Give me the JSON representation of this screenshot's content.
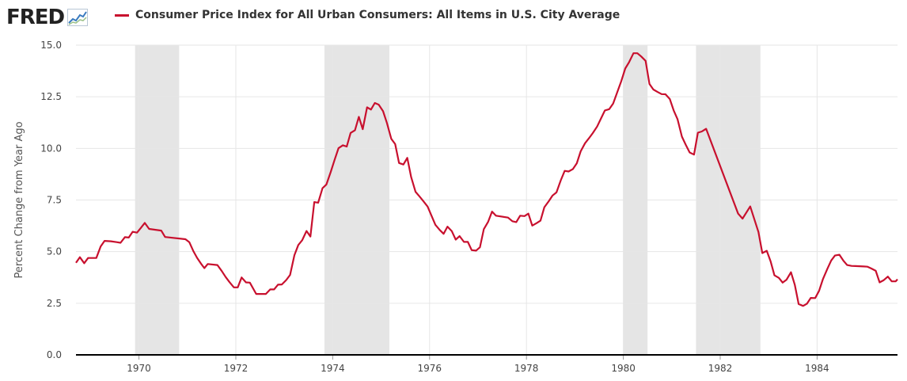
{
  "header": {
    "logo_text": "FRED",
    "logo_icon": "trend-chart-icon",
    "series_title": "Consumer Price Index for All Urban Consumers: All Items in U.S. City Average"
  },
  "colors": {
    "series_line": "#c8102e",
    "recession_band": "#e5e5e5",
    "grid": "#e6e6e6",
    "axis": "#000000"
  },
  "chart_data": {
    "type": "line",
    "title": "Consumer Price Index for All Urban Consumers: All Items in U.S. City Average",
    "ylabel": "Percent Change from Year Ago",
    "xlabel": "",
    "xlim": [
      1968.7,
      1985.66
    ],
    "ylim": [
      0,
      15
    ],
    "grid": true,
    "x_ticks": [
      "1970",
      "1972",
      "1974",
      "1976",
      "1978",
      "1980",
      "1982",
      "1984"
    ],
    "y_ticks": [
      "0.0",
      "2.5",
      "5.0",
      "7.5",
      "10.0",
      "12.5",
      "15.0"
    ],
    "recessions": [
      {
        "start": 1969.92,
        "end": 1970.83
      },
      {
        "start": 1973.83,
        "end": 1975.17
      },
      {
        "start": 1980.0,
        "end": 1980.5
      },
      {
        "start": 1981.5,
        "end": 1982.83
      }
    ],
    "series": [
      {
        "name": "Consumer Price Index for All Urban Consumers: All Items in U.S. City Average",
        "points": [
          [
            1968.7,
            4.46
          ],
          [
            1968.78,
            4.73
          ],
          [
            1968.87,
            4.44
          ],
          [
            1968.95,
            4.69
          ],
          [
            1969.04,
            4.69
          ],
          [
            1969.12,
            4.69
          ],
          [
            1969.21,
            5.25
          ],
          [
            1969.29,
            5.52
          ],
          [
            1969.42,
            5.5
          ],
          [
            1969.54,
            5.46
          ],
          [
            1969.62,
            5.43
          ],
          [
            1969.71,
            5.7
          ],
          [
            1969.79,
            5.68
          ],
          [
            1969.87,
            5.96
          ],
          [
            1969.96,
            5.92
          ],
          [
            1970.04,
            6.15
          ],
          [
            1970.12,
            6.39
          ],
          [
            1970.21,
            6.1
          ],
          [
            1970.46,
            6.02
          ],
          [
            1970.54,
            5.71
          ],
          [
            1970.96,
            5.6
          ],
          [
            1971.04,
            5.46
          ],
          [
            1971.12,
            5.04
          ],
          [
            1971.2,
            4.7
          ],
          [
            1971.29,
            4.39
          ],
          [
            1971.35,
            4.2
          ],
          [
            1971.42,
            4.4
          ],
          [
            1971.62,
            4.35
          ],
          [
            1971.71,
            4.06
          ],
          [
            1971.79,
            3.77
          ],
          [
            1971.87,
            3.52
          ],
          [
            1971.96,
            3.27
          ],
          [
            1972.04,
            3.27
          ],
          [
            1972.12,
            3.75
          ],
          [
            1972.21,
            3.51
          ],
          [
            1972.29,
            3.5
          ],
          [
            1972.42,
            2.95
          ],
          [
            1972.62,
            2.95
          ],
          [
            1972.71,
            3.17
          ],
          [
            1972.79,
            3.17
          ],
          [
            1972.87,
            3.4
          ],
          [
            1972.95,
            3.41
          ],
          [
            1973.04,
            3.62
          ],
          [
            1973.12,
            3.87
          ],
          [
            1973.21,
            4.83
          ],
          [
            1973.29,
            5.32
          ],
          [
            1973.37,
            5.55
          ],
          [
            1973.46,
            6.0
          ],
          [
            1973.54,
            5.73
          ],
          [
            1973.62,
            7.4
          ],
          [
            1973.7,
            7.37
          ],
          [
            1973.79,
            8.07
          ],
          [
            1973.87,
            8.25
          ],
          [
            1973.96,
            8.86
          ],
          [
            1974.04,
            9.45
          ],
          [
            1974.12,
            10.01
          ],
          [
            1974.21,
            10.15
          ],
          [
            1974.29,
            10.09
          ],
          [
            1974.37,
            10.75
          ],
          [
            1974.46,
            10.88
          ],
          [
            1974.54,
            11.53
          ],
          [
            1974.62,
            10.93
          ],
          [
            1974.71,
            11.99
          ],
          [
            1974.79,
            11.88
          ],
          [
            1974.87,
            12.2
          ],
          [
            1974.95,
            12.12
          ],
          [
            1975.04,
            11.8
          ],
          [
            1975.12,
            11.23
          ],
          [
            1975.21,
            10.46
          ],
          [
            1975.29,
            10.21
          ],
          [
            1975.37,
            9.29
          ],
          [
            1975.46,
            9.22
          ],
          [
            1975.54,
            9.54
          ],
          [
            1975.62,
            8.61
          ],
          [
            1975.71,
            7.9
          ],
          [
            1975.79,
            7.68
          ],
          [
            1975.87,
            7.45
          ],
          [
            1975.96,
            7.18
          ],
          [
            1976.04,
            6.74
          ],
          [
            1976.12,
            6.3
          ],
          [
            1976.21,
            6.05
          ],
          [
            1976.29,
            5.86
          ],
          [
            1976.37,
            6.21
          ],
          [
            1976.46,
            5.99
          ],
          [
            1976.54,
            5.58
          ],
          [
            1976.62,
            5.75
          ],
          [
            1976.71,
            5.47
          ],
          [
            1976.79,
            5.47
          ],
          [
            1976.87,
            5.07
          ],
          [
            1976.96,
            5.05
          ],
          [
            1977.04,
            5.21
          ],
          [
            1977.12,
            6.09
          ],
          [
            1977.21,
            6.45
          ],
          [
            1977.29,
            6.94
          ],
          [
            1977.37,
            6.74
          ],
          [
            1977.62,
            6.65
          ],
          [
            1977.71,
            6.47
          ],
          [
            1977.79,
            6.43
          ],
          [
            1977.87,
            6.74
          ],
          [
            1977.96,
            6.72
          ],
          [
            1978.04,
            6.84
          ],
          [
            1978.12,
            6.26
          ],
          [
            1978.21,
            6.38
          ],
          [
            1978.29,
            6.5
          ],
          [
            1978.37,
            7.15
          ],
          [
            1978.46,
            7.44
          ],
          [
            1978.54,
            7.72
          ],
          [
            1978.62,
            7.87
          ],
          [
            1978.71,
            8.46
          ],
          [
            1978.79,
            8.91
          ],
          [
            1978.87,
            8.88
          ],
          [
            1978.96,
            9.0
          ],
          [
            1979.04,
            9.28
          ],
          [
            1979.12,
            9.86
          ],
          [
            1979.21,
            10.25
          ],
          [
            1979.29,
            10.49
          ],
          [
            1979.37,
            10.74
          ],
          [
            1979.46,
            11.06
          ],
          [
            1979.54,
            11.45
          ],
          [
            1979.62,
            11.84
          ],
          [
            1979.71,
            11.9
          ],
          [
            1979.79,
            12.17
          ],
          [
            1979.87,
            12.69
          ],
          [
            1979.96,
            13.27
          ],
          [
            1980.04,
            13.87
          ],
          [
            1980.12,
            14.18
          ],
          [
            1980.21,
            14.61
          ],
          [
            1980.29,
            14.61
          ],
          [
            1980.37,
            14.45
          ],
          [
            1980.46,
            14.24
          ],
          [
            1980.54,
            13.12
          ],
          [
            1980.62,
            12.85
          ],
          [
            1980.71,
            12.73
          ],
          [
            1980.79,
            12.63
          ],
          [
            1980.87,
            12.62
          ],
          [
            1980.96,
            12.39
          ],
          [
            1981.04,
            11.84
          ],
          [
            1981.12,
            11.41
          ],
          [
            1981.21,
            10.57
          ],
          [
            1981.29,
            10.17
          ],
          [
            1981.37,
            9.8
          ],
          [
            1981.46,
            9.7
          ],
          [
            1981.54,
            10.76
          ],
          [
            1981.62,
            10.82
          ],
          [
            1981.71,
            10.95
          ],
          [
            1982.37,
            6.84
          ],
          [
            1982.46,
            6.6
          ],
          [
            1982.62,
            7.19
          ],
          [
            1982.79,
            5.95
          ],
          [
            1982.87,
            4.93
          ],
          [
            1982.96,
            5.04
          ],
          [
            1983.04,
            4.54
          ],
          [
            1983.12,
            3.85
          ],
          [
            1983.21,
            3.73
          ],
          [
            1983.29,
            3.5
          ],
          [
            1983.37,
            3.64
          ],
          [
            1983.46,
            4.0
          ],
          [
            1983.54,
            3.4
          ],
          [
            1983.62,
            2.46
          ],
          [
            1983.71,
            2.37
          ],
          [
            1983.79,
            2.48
          ],
          [
            1983.87,
            2.76
          ],
          [
            1983.96,
            2.75
          ],
          [
            1984.04,
            3.1
          ],
          [
            1984.12,
            3.66
          ],
          [
            1984.21,
            4.16
          ],
          [
            1984.29,
            4.57
          ],
          [
            1984.37,
            4.81
          ],
          [
            1984.46,
            4.85
          ],
          [
            1984.54,
            4.57
          ],
          [
            1984.62,
            4.35
          ],
          [
            1984.71,
            4.31
          ],
          [
            1984.79,
            4.3
          ],
          [
            1984.96,
            4.28
          ],
          [
            1985.04,
            4.27
          ],
          [
            1985.12,
            4.18
          ],
          [
            1985.21,
            4.07
          ],
          [
            1985.29,
            3.51
          ],
          [
            1985.37,
            3.61
          ],
          [
            1985.46,
            3.79
          ],
          [
            1985.54,
            3.56
          ],
          [
            1985.62,
            3.56
          ],
          [
            1985.66,
            3.66
          ]
        ]
      }
    ]
  }
}
